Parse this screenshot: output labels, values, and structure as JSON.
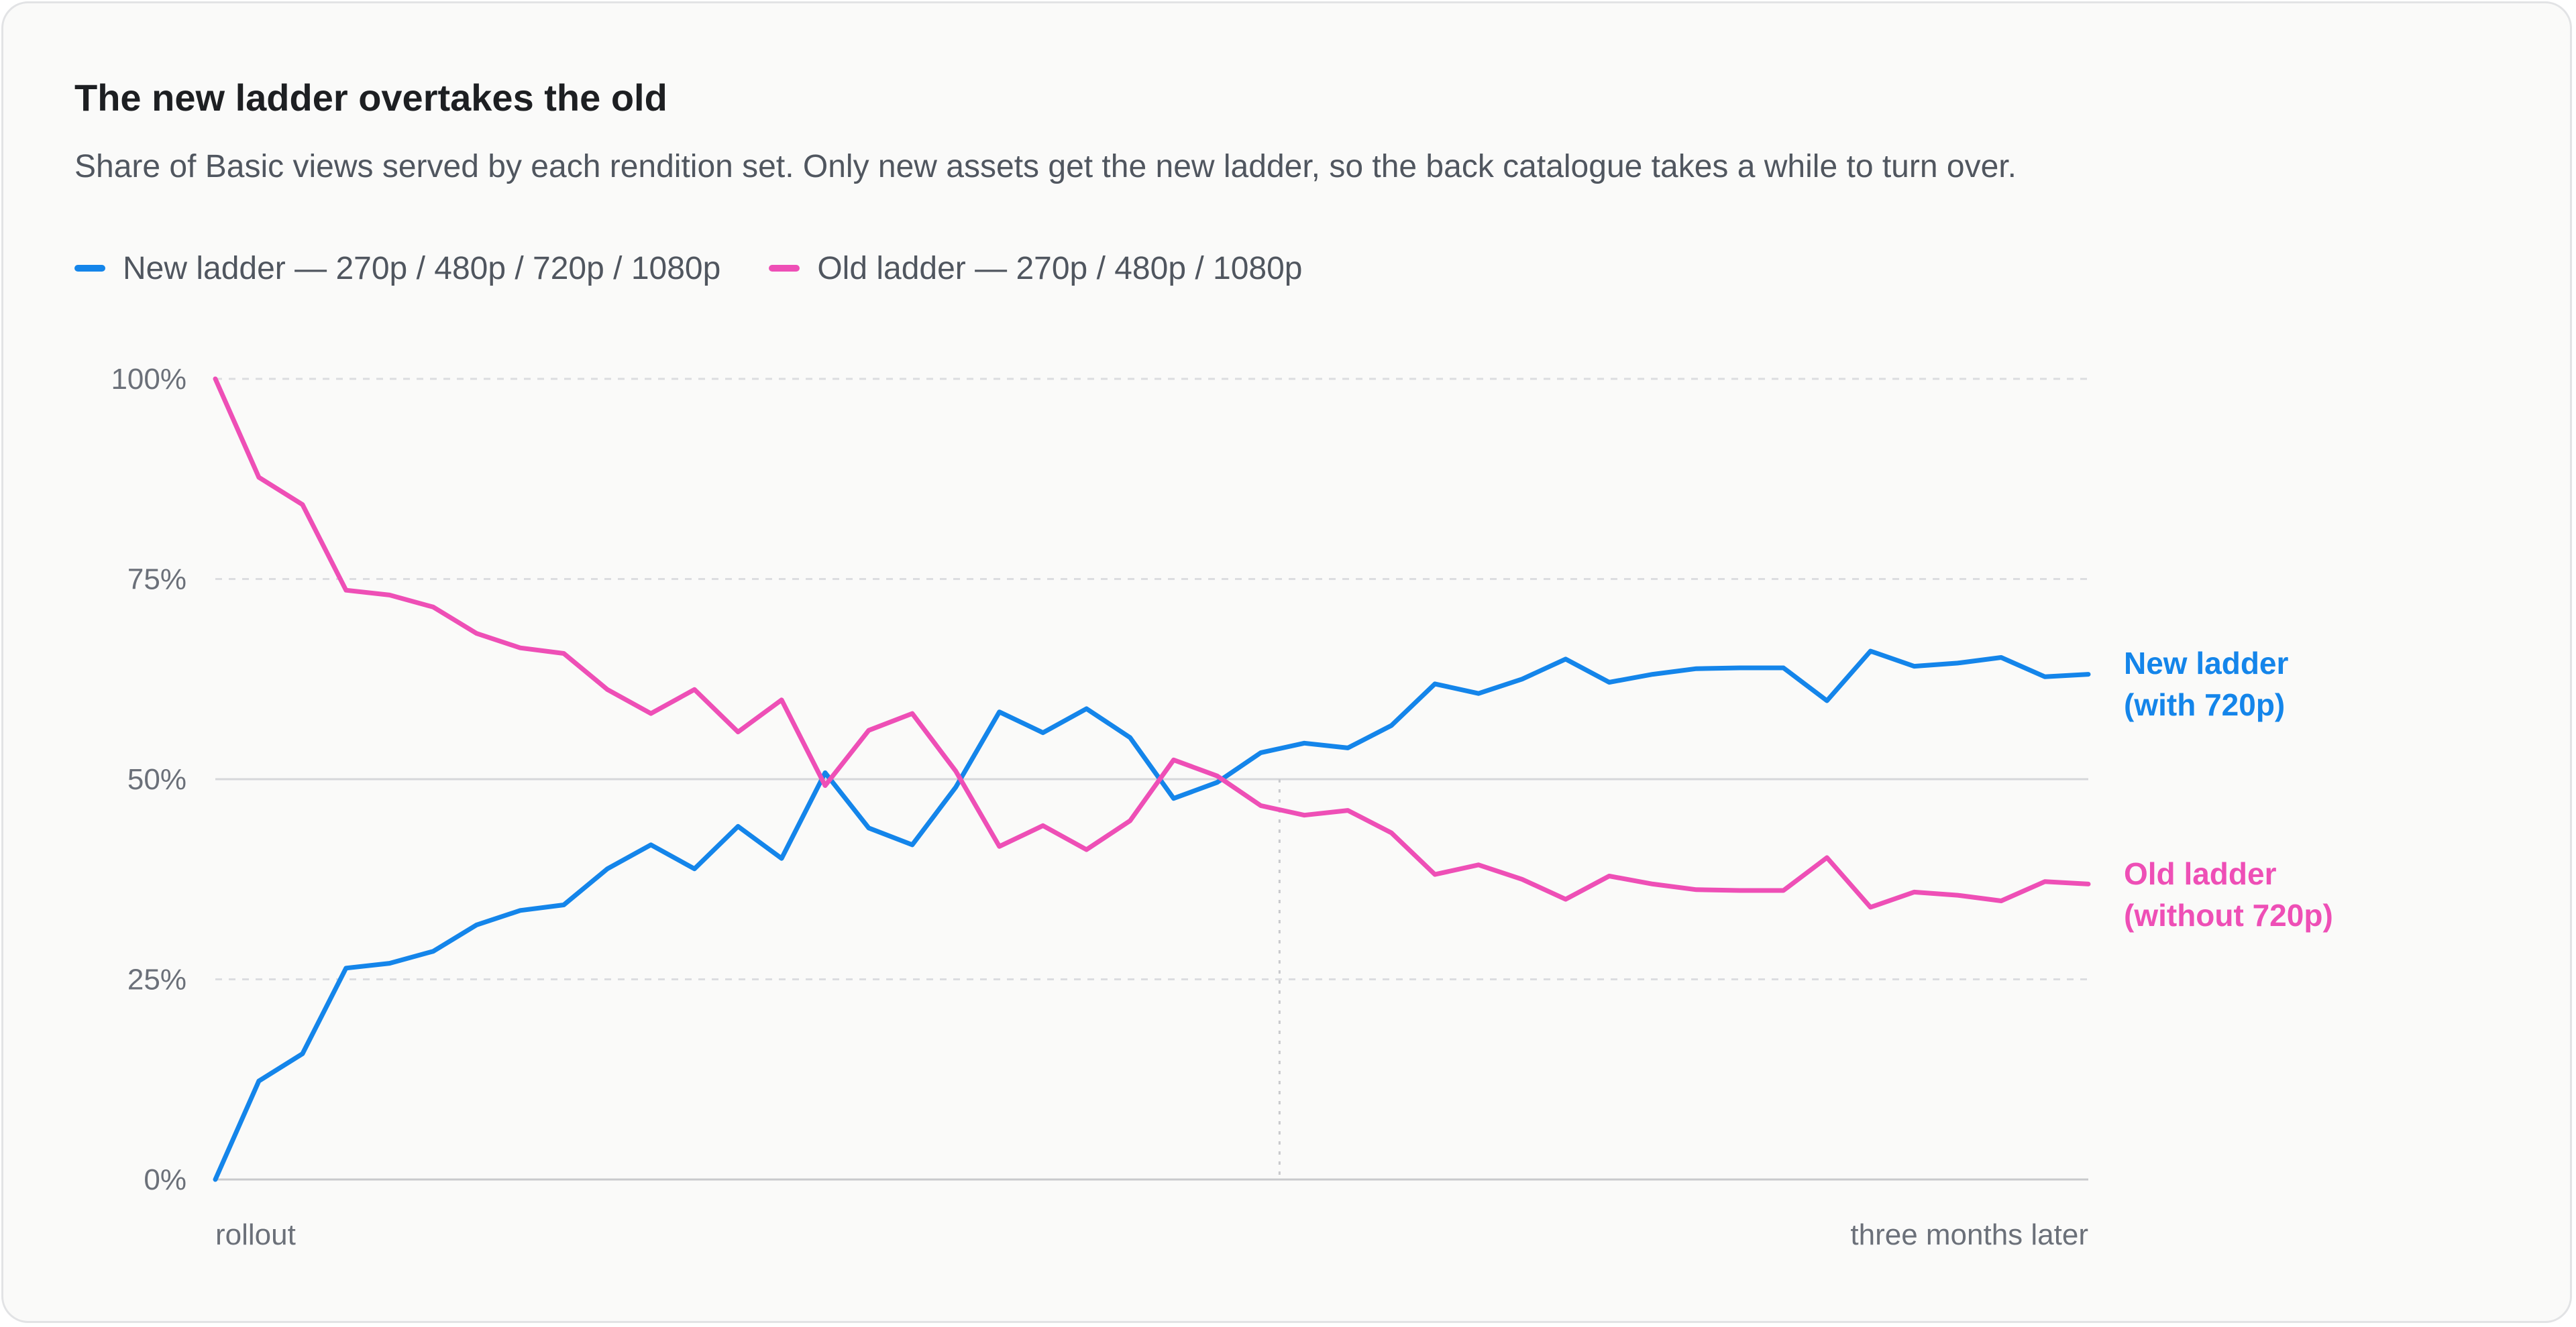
{
  "title": "The new ladder overtakes the old",
  "subtitle": "Share of Basic views served by each rendition set. Only new assets get the new ladder, so the back catalogue takes a while to turn over.",
  "chart_data": {
    "type": "line",
    "title": "The new ladder overtakes the old",
    "subtitle": "Share of Basic views served by each rendition set. Only new assets get the new ladder, so the back catalogue takes a while to turn over.",
    "x_labels": {
      "start": "rollout",
      "end": "three months later"
    },
    "x_domain": [
      0,
      44
    ],
    "marker_x": 25,
    "reference_y": 50,
    "ylim": [
      0,
      100
    ],
    "y_ticks": [
      {
        "value": 0,
        "label": "0%"
      },
      {
        "value": 25,
        "label": "25%"
      },
      {
        "value": 50,
        "label": "50%"
      },
      {
        "value": 75,
        "label": "75%"
      },
      {
        "value": 100,
        "label": "100%"
      }
    ],
    "grid": true,
    "legend_position": "top-left",
    "series": [
      {
        "name": "New ladder — 270p / 480p / 720p / 1080p",
        "end_label": [
          "New ladder",
          "(with 720p)"
        ],
        "color": "#1485ea",
        "values": [
          0,
          12.3,
          15.7,
          26.4,
          27.0,
          28.5,
          31.8,
          33.6,
          34.3,
          38.8,
          41.8,
          38.8,
          44.1,
          40.1,
          50.8,
          43.9,
          41.8,
          49.0,
          58.4,
          55.8,
          58.8,
          55.2,
          47.6,
          49.6,
          53.3,
          54.5,
          53.9,
          56.7,
          61.9,
          60.7,
          62.5,
          65.0,
          62.1,
          63.1,
          63.8,
          63.9,
          63.9,
          59.8,
          66.0,
          64.1,
          64.5,
          65.2,
          62.8,
          63.1
        ]
      },
      {
        "name": "Old ladder — 270p / 480p / 1080p",
        "end_label": [
          "Old ladder",
          "(without 720p)"
        ],
        "color": "#ee4fb6",
        "values": [
          100,
          87.7,
          84.3,
          73.6,
          73.0,
          71.5,
          68.2,
          66.4,
          65.7,
          61.2,
          58.2,
          61.2,
          55.9,
          59.9,
          49.2,
          56.1,
          58.2,
          51.0,
          41.6,
          44.2,
          41.2,
          44.8,
          52.4,
          50.4,
          46.7,
          45.5,
          46.1,
          43.3,
          38.1,
          39.3,
          37.5,
          35.0,
          37.9,
          36.9,
          36.2,
          36.1,
          36.1,
          40.2,
          34.0,
          35.9,
          35.5,
          34.8,
          37.2,
          36.9
        ]
      }
    ]
  }
}
